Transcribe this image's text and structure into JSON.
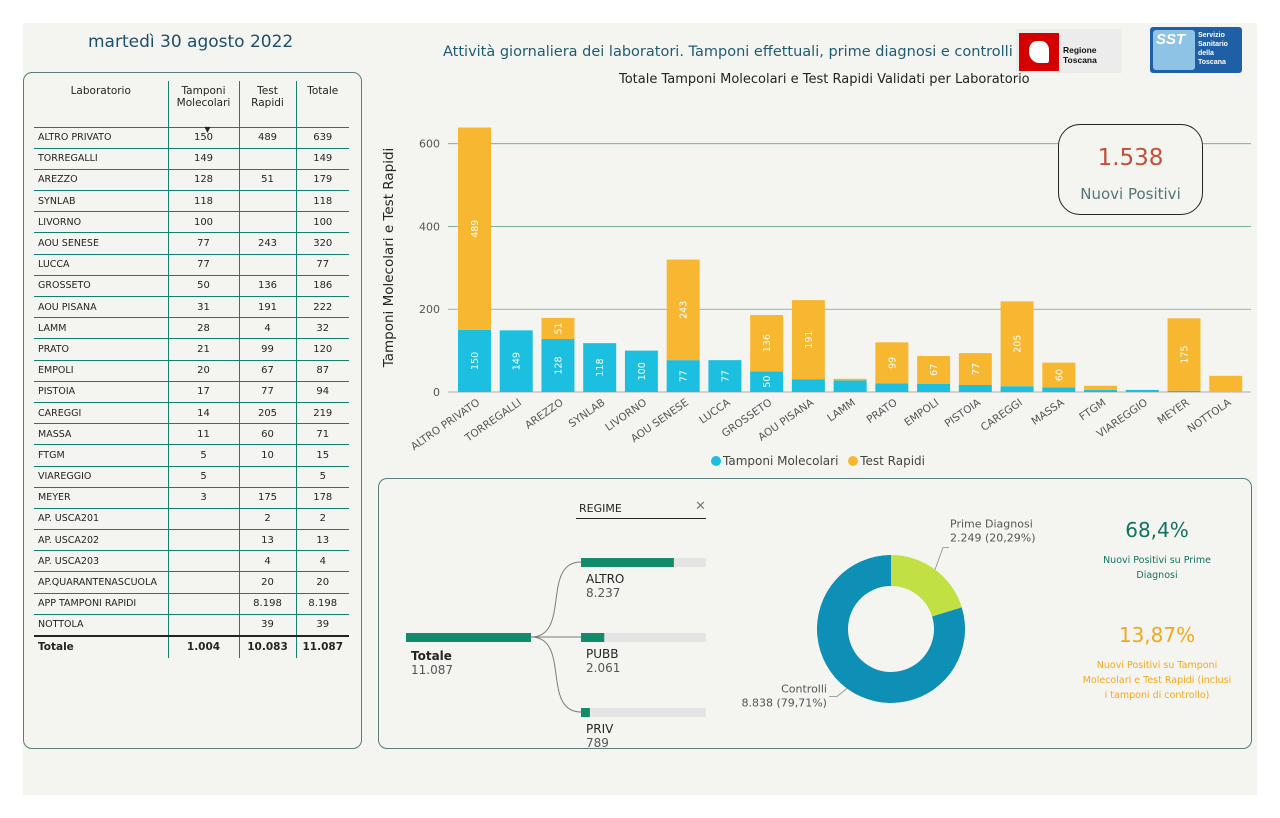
{
  "header": {
    "date": "martedì 30 agosto 2022",
    "title": "Attività giornaliera dei laboratori. Tamponi effettuali, prime diagnosi e controlli",
    "logo_rt": "Regione Toscana",
    "logo_sst_mark": "SST",
    "logo_sst_text": "Servizio Sanitario della Toscana"
  },
  "table": {
    "headers": {
      "lab": "Laboratorio",
      "mol": "Tamponi Molecolari",
      "rap": "Test Rapidi",
      "tot": "Totale",
      "sort_icon": "▼"
    },
    "rows": [
      {
        "lab": "ALTRO PRIVATO",
        "mol": "150",
        "rap": "489",
        "tot": "639"
      },
      {
        "lab": "TORREGALLI",
        "mol": "149",
        "rap": "",
        "tot": "149"
      },
      {
        "lab": "AREZZO",
        "mol": "128",
        "rap": "51",
        "tot": "179"
      },
      {
        "lab": "SYNLAB",
        "mol": "118",
        "rap": "",
        "tot": "118"
      },
      {
        "lab": "LIVORNO",
        "mol": "100",
        "rap": "",
        "tot": "100"
      },
      {
        "lab": "AOU SENESE",
        "mol": "77",
        "rap": "243",
        "tot": "320"
      },
      {
        "lab": "LUCCA",
        "mol": "77",
        "rap": "",
        "tot": "77"
      },
      {
        "lab": "GROSSETO",
        "mol": "50",
        "rap": "136",
        "tot": "186"
      },
      {
        "lab": "AOU PISANA",
        "mol": "31",
        "rap": "191",
        "tot": "222"
      },
      {
        "lab": "LAMM",
        "mol": "28",
        "rap": "4",
        "tot": "32"
      },
      {
        "lab": "PRATO",
        "mol": "21",
        "rap": "99",
        "tot": "120"
      },
      {
        "lab": "EMPOLI",
        "mol": "20",
        "rap": "67",
        "tot": "87"
      },
      {
        "lab": "PISTOIA",
        "mol": "17",
        "rap": "77",
        "tot": "94"
      },
      {
        "lab": "CAREGGI",
        "mol": "14",
        "rap": "205",
        "tot": "219"
      },
      {
        "lab": "MASSA",
        "mol": "11",
        "rap": "60",
        "tot": "71"
      },
      {
        "lab": "FTGM",
        "mol": "5",
        "rap": "10",
        "tot": "15"
      },
      {
        "lab": "VIAREGGIO",
        "mol": "5",
        "rap": "",
        "tot": "5"
      },
      {
        "lab": "MEYER",
        "mol": "3",
        "rap": "175",
        "tot": "178"
      },
      {
        "lab": "AP. USCA201",
        "mol": "",
        "rap": "2",
        "tot": "2"
      },
      {
        "lab": "AP. USCA202",
        "mol": "",
        "rap": "13",
        "tot": "13"
      },
      {
        "lab": "AP. USCA203",
        "mol": "",
        "rap": "4",
        "tot": "4"
      },
      {
        "lab": "AP.QUARANTENASCUOLA",
        "mol": "",
        "rap": "20",
        "tot": "20"
      },
      {
        "lab": "APP TAMPONI RAPIDI",
        "mol": "",
        "rap": "8.198",
        "tot": "8.198"
      },
      {
        "lab": "NOTTOLA",
        "mol": "",
        "rap": "39",
        "tot": "39"
      }
    ],
    "total": {
      "lab": "Totale",
      "mol": "1.004",
      "rap": "10.083",
      "tot": "11.087"
    }
  },
  "kpi": {
    "value": "1.538",
    "label": "Nuovi Positivi"
  },
  "regime_filter": {
    "label": "REGIME",
    "clear_icon": "✕"
  },
  "percentages": [
    {
      "value": "68,4%",
      "desc": "Nuovi Positivi su Prime Diagnosi",
      "color": "#11735f"
    },
    {
      "value": "13,87%",
      "desc": "Nuovi Positivi su Tamponi Molecolari e Test Rapidi (inclusi i tamponi di controllo)",
      "color": "#f2a81d"
    }
  ],
  "chart_data": [
    {
      "type": "bar",
      "stacked": true,
      "title": "Totale Tamponi Molecolari e Test Rapidi Validati per Laboratorio",
      "ylabel": "Tamponi Molecolari e Test Rapidi",
      "ylim": [
        0,
        650
      ],
      "yticks": [
        0,
        200,
        400,
        600
      ],
      "grid": true,
      "legend": "bottom",
      "categories": [
        "ALTRO PRIVATO",
        "TORREGALLI",
        "AREZZO",
        "SYNLAB",
        "LIVORNO",
        "AOU SENESE",
        "LUCCA",
        "GROSSETO",
        "AOU PISANA",
        "LAMM",
        "PRATO",
        "EMPOLI",
        "PISTOIA",
        "CAREGGI",
        "MASSA",
        "FTGM",
        "VIAREGGIO",
        "MEYER",
        "NOTTOLA"
      ],
      "series": [
        {
          "name": "Tamponi Molecolari",
          "color": "#1cbfe0",
          "values": [
            150,
            149,
            128,
            118,
            100,
            77,
            77,
            50,
            31,
            28,
            21,
            20,
            17,
            14,
            11,
            5,
            5,
            3,
            0
          ]
        },
        {
          "name": "Test Rapidi",
          "color": "#f8b731",
          "values": [
            489,
            0,
            51,
            0,
            0,
            243,
            0,
            136,
            191,
            4,
            99,
            67,
            77,
            205,
            60,
            10,
            0,
            175,
            39
          ]
        }
      ],
      "data_labels": {
        "Tamponi Molecolari": [
          "150",
          "149",
          "128",
          "118",
          "100",
          "77",
          "77",
          "50",
          "",
          "",
          "",
          "",
          "",
          "",
          "",
          "",
          "",
          "",
          ""
        ],
        "Test Rapidi": [
          "489",
          "",
          "51",
          "",
          "",
          "243",
          "",
          "136",
          "191",
          "",
          "99",
          "67",
          "77",
          "205",
          "60",
          "",
          "",
          "175",
          ""
        ]
      }
    },
    {
      "type": "decomposition-tree",
      "root": {
        "name": "Totale",
        "value": 11087,
        "label": "11.087"
      },
      "children": [
        {
          "name": "ALTRO",
          "value": 8237,
          "label": "8.237"
        },
        {
          "name": "PUBB",
          "value": 2061,
          "label": "2.061"
        },
        {
          "name": "PRIV",
          "value": 789,
          "label": "789"
        }
      ],
      "color": "#118b6c"
    },
    {
      "type": "pie",
      "donut": true,
      "slices": [
        {
          "name": "Prime Diagnosi",
          "value": 2249,
          "label": "2.249 (20,29%)",
          "color": "#c0e043"
        },
        {
          "name": "Controlli",
          "value": 8838,
          "label": "8.838 (79,71%)",
          "color": "#0d8fb6"
        }
      ]
    }
  ]
}
